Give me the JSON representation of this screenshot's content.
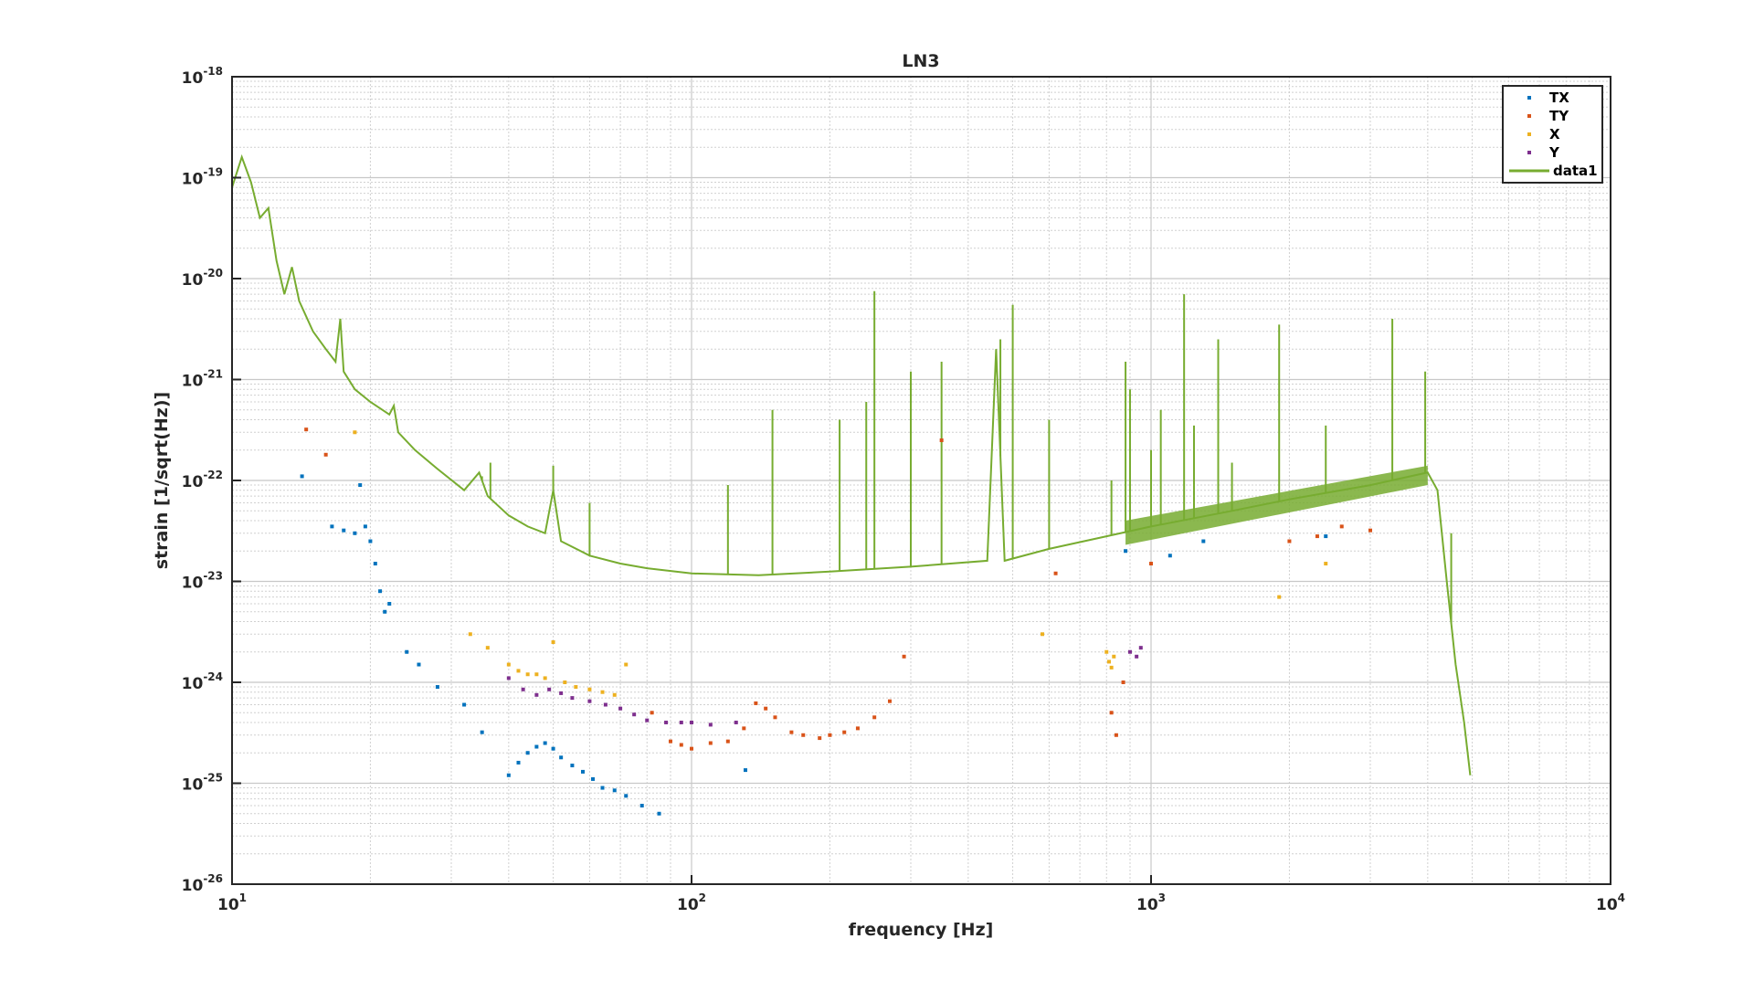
{
  "chart_data": {
    "type": "scatter",
    "title": "LN3",
    "xlabel": "frequency [Hz]",
    "ylabel": "strain [1/sqrt(Hz)]",
    "xscale": "log",
    "yscale": "log",
    "xlim": [
      10,
      10000
    ],
    "ylim": [
      1e-26,
      1e-18
    ],
    "grid": true,
    "minor_grid": true,
    "legend_position": "top-right",
    "x_ticks": [
      {
        "value": 10,
        "base": "10",
        "exp": "1"
      },
      {
        "value": 100,
        "base": "10",
        "exp": "2"
      },
      {
        "value": 1000,
        "base": "10",
        "exp": "3"
      },
      {
        "value": 10000,
        "base": "10",
        "exp": "4"
      }
    ],
    "y_ticks": [
      {
        "value": 1e-18,
        "base": "10",
        "exp": "-18"
      },
      {
        "value": 1e-19,
        "base": "10",
        "exp": "-19"
      },
      {
        "value": 1e-20,
        "base": "10",
        "exp": "-20"
      },
      {
        "value": 1e-21,
        "base": "10",
        "exp": "-21"
      },
      {
        "value": 1e-22,
        "base": "10",
        "exp": "-22"
      },
      {
        "value": 1e-23,
        "base": "10",
        "exp": "-23"
      },
      {
        "value": 1e-24,
        "base": "10",
        "exp": "-24"
      },
      {
        "value": 1e-25,
        "base": "10",
        "exp": "-25"
      },
      {
        "value": 1e-26,
        "base": "10",
        "exp": "-26"
      }
    ],
    "series": [
      {
        "name": "TX",
        "kind": "scatter",
        "color": "#0072BD",
        "points": [
          [
            14.2,
            1.1e-22
          ],
          [
            16.5,
            3.5e-23
          ],
          [
            17.5,
            3.2e-23
          ],
          [
            18.5,
            3e-23
          ],
          [
            19,
            9e-23
          ],
          [
            19.5,
            3.5e-23
          ],
          [
            20,
            2.5e-23
          ],
          [
            20.5,
            1.5e-23
          ],
          [
            21,
            8e-24
          ],
          [
            21.5,
            5e-24
          ],
          [
            22,
            6e-24
          ],
          [
            24,
            2e-24
          ],
          [
            25.5,
            1.5e-24
          ],
          [
            28,
            9e-25
          ],
          [
            32,
            6e-25
          ],
          [
            35,
            3.2e-25
          ],
          [
            40,
            1.2e-25
          ],
          [
            42,
            1.6e-25
          ],
          [
            44,
            2e-25
          ],
          [
            46,
            2.3e-25
          ],
          [
            48,
            2.5e-25
          ],
          [
            50,
            2.2e-25
          ],
          [
            52,
            1.8e-25
          ],
          [
            55,
            1.5e-25
          ],
          [
            58,
            1.3e-25
          ],
          [
            61,
            1.1e-25
          ],
          [
            64,
            9e-26
          ],
          [
            68,
            8.5e-26
          ],
          [
            72,
            7.5e-26
          ],
          [
            78,
            6e-26
          ],
          [
            85,
            5e-26
          ],
          [
            131,
            1.35e-25
          ],
          [
            880,
            2e-23
          ],
          [
            1100,
            1.8e-23
          ],
          [
            1300,
            2.5e-23
          ],
          [
            2400,
            2.8e-23
          ]
        ]
      },
      {
        "name": "TY",
        "kind": "scatter",
        "color": "#D95319",
        "points": [
          [
            14.5,
            3.2e-22
          ],
          [
            16,
            1.8e-22
          ],
          [
            82,
            5e-25
          ],
          [
            90,
            2.6e-25
          ],
          [
            95,
            2.4e-25
          ],
          [
            100,
            2.2e-25
          ],
          [
            110,
            2.5e-25
          ],
          [
            120,
            2.6e-25
          ],
          [
            130,
            3.5e-25
          ],
          [
            138,
            6.2e-25
          ],
          [
            145,
            5.5e-25
          ],
          [
            152,
            4.5e-25
          ],
          [
            165,
            3.2e-25
          ],
          [
            175,
            3e-25
          ],
          [
            190,
            2.8e-25
          ],
          [
            200,
            3e-25
          ],
          [
            215,
            3.2e-25
          ],
          [
            230,
            3.5e-25
          ],
          [
            250,
            4.5e-25
          ],
          [
            270,
            6.5e-25
          ],
          [
            290,
            1.8e-24
          ],
          [
            350,
            2.5e-22
          ],
          [
            620,
            1.2e-23
          ],
          [
            820,
            5e-25
          ],
          [
            840,
            3e-25
          ],
          [
            870,
            1e-24
          ],
          [
            1000,
            1.5e-23
          ],
          [
            2000,
            2.5e-23
          ],
          [
            2300,
            2.8e-23
          ],
          [
            2600,
            3.5e-23
          ],
          [
            3000,
            3.2e-23
          ]
        ]
      },
      {
        "name": "X",
        "kind": "scatter",
        "color": "#EDB120",
        "points": [
          [
            18.5,
            3e-22
          ],
          [
            33,
            3e-24
          ],
          [
            36,
            2.2e-24
          ],
          [
            40,
            1.5e-24
          ],
          [
            42,
            1.3e-24
          ],
          [
            44,
            1.2e-24
          ],
          [
            46,
            1.2e-24
          ],
          [
            48,
            1.1e-24
          ],
          [
            50,
            2.5e-24
          ],
          [
            53,
            1e-24
          ],
          [
            56,
            9e-25
          ],
          [
            60,
            8.5e-25
          ],
          [
            64,
            8e-25
          ],
          [
            68,
            7.5e-25
          ],
          [
            72,
            1.5e-24
          ],
          [
            580,
            3e-24
          ],
          [
            800,
            2e-24
          ],
          [
            810,
            1.6e-24
          ],
          [
            820,
            1.4e-24
          ],
          [
            830,
            1.8e-24
          ],
          [
            1900,
            7e-24
          ],
          [
            2400,
            1.5e-23
          ]
        ]
      },
      {
        "name": "Y",
        "kind": "scatter",
        "color": "#7E2F8E",
        "points": [
          [
            40,
            1.1e-24
          ],
          [
            43,
            8.5e-25
          ],
          [
            46,
            7.5e-25
          ],
          [
            49,
            8.5e-25
          ],
          [
            52,
            7.8e-25
          ],
          [
            55,
            7e-25
          ],
          [
            60,
            6.5e-25
          ],
          [
            65,
            6e-25
          ],
          [
            70,
            5.5e-25
          ],
          [
            75,
            4.8e-25
          ],
          [
            80,
            4.2e-25
          ],
          [
            88,
            4e-25
          ],
          [
            95,
            4e-25
          ],
          [
            100,
            4e-25
          ],
          [
            110,
            3.8e-25
          ],
          [
            125,
            4e-25
          ],
          [
            900,
            2e-24
          ],
          [
            930,
            1.8e-24
          ],
          [
            950,
            2.2e-24
          ]
        ]
      },
      {
        "name": "data1",
        "kind": "line",
        "color": "#77AC30",
        "points": [
          [
            10,
            8e-20
          ],
          [
            10.5,
            1.6e-19
          ],
          [
            11,
            9e-20
          ],
          [
            11.5,
            4e-20
          ],
          [
            12,
            5e-20
          ],
          [
            12.5,
            1.5e-20
          ],
          [
            13,
            7e-21
          ],
          [
            13.5,
            1.3e-20
          ],
          [
            14,
            6e-21
          ],
          [
            15,
            3e-21
          ],
          [
            16,
            2e-21
          ],
          [
            16.8,
            1.5e-21
          ],
          [
            17.2,
            4e-21
          ],
          [
            17.5,
            1.2e-21
          ],
          [
            18.5,
            8e-22
          ],
          [
            20,
            6e-22
          ],
          [
            22,
            4.5e-22
          ],
          [
            22.5,
            5.5e-22
          ],
          [
            23,
            3e-22
          ],
          [
            25,
            2e-22
          ],
          [
            28,
            1.3e-22
          ],
          [
            32,
            8e-23
          ],
          [
            34.5,
            1.2e-22
          ],
          [
            36,
            7e-23
          ],
          [
            40,
            4.5e-23
          ],
          [
            44,
            3.5e-23
          ],
          [
            48,
            3e-23
          ],
          [
            50,
            8e-23
          ],
          [
            52,
            2.5e-23
          ],
          [
            60,
            1.8e-23
          ],
          [
            70,
            1.5e-23
          ],
          [
            80,
            1.35e-23
          ],
          [
            100,
            1.2e-23
          ],
          [
            140,
            1.15e-23
          ],
          [
            200,
            1.25e-23
          ],
          [
            300,
            1.4e-23
          ],
          [
            440,
            1.6e-23
          ],
          [
            460,
            2e-21
          ],
          [
            480,
            1.6e-23
          ],
          [
            600,
            2.1e-23
          ],
          [
            800,
            2.8e-23
          ],
          [
            1000,
            3.5e-23
          ],
          [
            1500,
            5e-23
          ],
          [
            2000,
            6.5e-23
          ],
          [
            3000,
            9e-23
          ],
          [
            4000,
            1.2e-22
          ],
          [
            4200,
            8e-23
          ],
          [
            4400,
            1e-23
          ],
          [
            4600,
            1.5e-24
          ],
          [
            4800,
            4e-25
          ],
          [
            4950,
            1.2e-25
          ]
        ]
      }
    ],
    "line_peaks": [
      [
        35,
        1.1e-22
      ],
      [
        36.5,
        1.5e-22
      ],
      [
        50,
        1.4e-22
      ],
      [
        60,
        6e-23
      ],
      [
        120,
        9e-23
      ],
      [
        150,
        5e-22
      ],
      [
        210,
        4e-22
      ],
      [
        240,
        6e-22
      ],
      [
        250,
        7.5e-21
      ],
      [
        300,
        1.2e-21
      ],
      [
        350,
        1.5e-21
      ],
      [
        470,
        2.5e-21
      ],
      [
        500,
        5.5e-21
      ],
      [
        600,
        4e-22
      ],
      [
        820,
        1e-22
      ],
      [
        880,
        1.5e-21
      ],
      [
        900,
        8e-22
      ],
      [
        1000,
        2e-22
      ],
      [
        1050,
        5e-22
      ],
      [
        1180,
        7e-21
      ],
      [
        1240,
        3.5e-22
      ],
      [
        1400,
        2.5e-21
      ],
      [
        1500,
        1.5e-22
      ],
      [
        1900,
        3.5e-21
      ],
      [
        2400,
        3.5e-22
      ],
      [
        3350,
        4e-21
      ],
      [
        3950,
        1.2e-21
      ],
      [
        4500,
        3e-23
      ]
    ],
    "dense_band": {
      "x_from": 880,
      "x_to": 4000,
      "y_low_from": 2.3e-23,
      "y_high_from": 4e-23,
      "y_low_to": 9e-23,
      "y_high_to": 1.4e-22
    }
  }
}
